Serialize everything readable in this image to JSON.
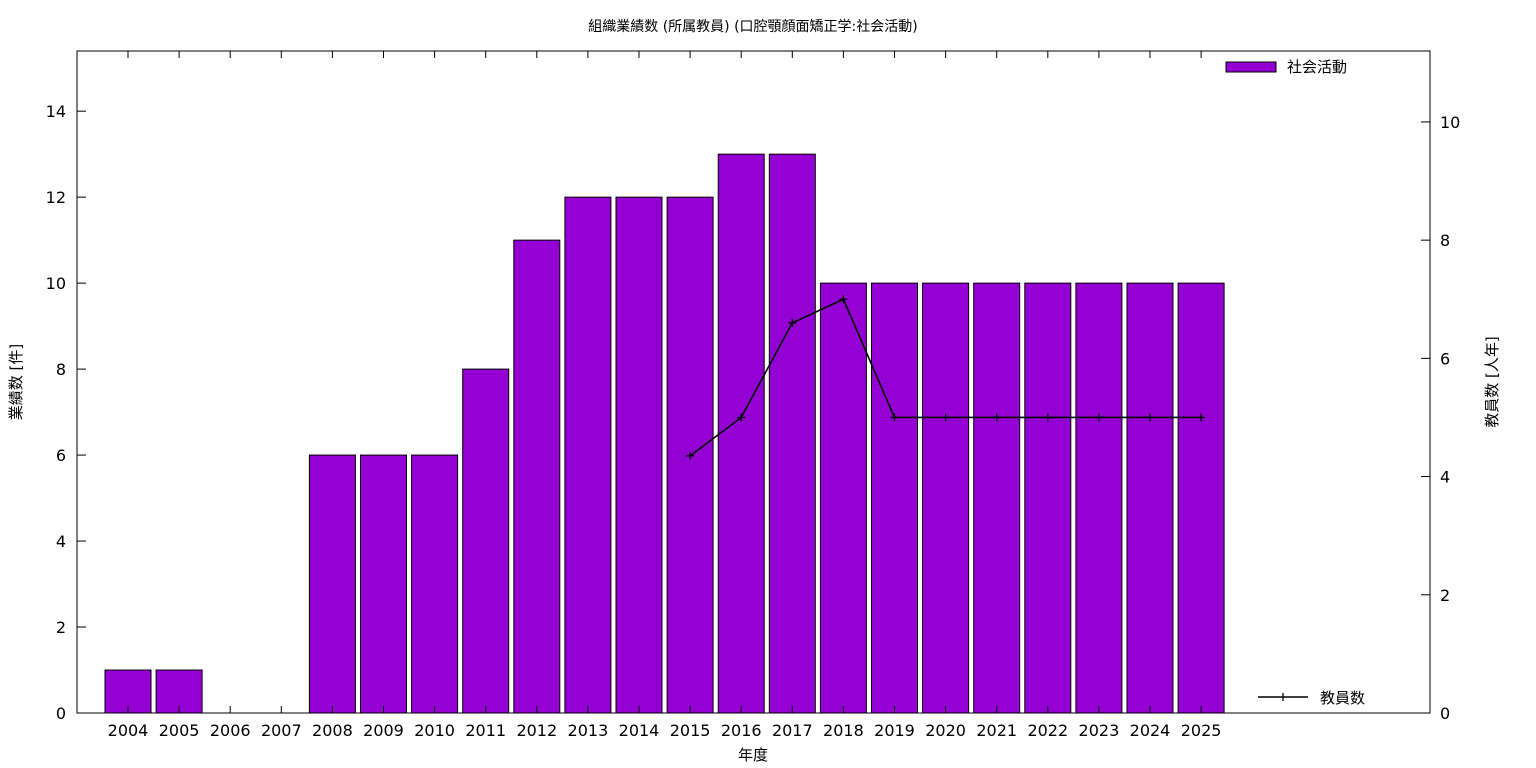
{
  "chart_data": {
    "type": "bar",
    "title": "組織業績数 (所属教員) (口腔顎顔面矯正学:社会活動)",
    "xlabel": "年度",
    "ylabel": "業績数 [件]",
    "y2label": "教員数 [人年]",
    "categories": [
      "2004",
      "2005",
      "2006",
      "2007",
      "2008",
      "2009",
      "2010",
      "2011",
      "2012",
      "2013",
      "2014",
      "2015",
      "2016",
      "2017",
      "2018",
      "2019",
      "2020",
      "2021",
      "2022",
      "2023",
      "2024",
      "2025"
    ],
    "series": [
      {
        "name": "社会活動",
        "type": "bar",
        "axis": "left",
        "color": "#9400d3",
        "values": [
          1,
          1,
          0,
          0,
          6,
          6,
          6,
          8,
          11,
          12,
          12,
          12,
          13,
          13,
          10,
          10,
          10,
          10,
          10,
          10,
          10,
          10
        ]
      },
      {
        "name": "教員数",
        "type": "line",
        "axis": "right",
        "color": "#000000",
        "values": [
          null,
          null,
          null,
          null,
          null,
          null,
          null,
          null,
          null,
          null,
          null,
          4.35,
          5,
          6.6,
          7,
          5,
          5,
          5,
          5,
          5,
          5,
          5
        ]
      }
    ],
    "ylim": [
      0,
      15.4
    ],
    "yticks": [
      0,
      2,
      4,
      6,
      8,
      10,
      12,
      14
    ],
    "y2lim": [
      0,
      11.2
    ],
    "y2ticks": [
      0,
      2,
      4,
      6,
      8,
      10
    ],
    "legend": {
      "bar_placement": "top-right",
      "line_placement": "bottom-right"
    },
    "grid": false
  }
}
